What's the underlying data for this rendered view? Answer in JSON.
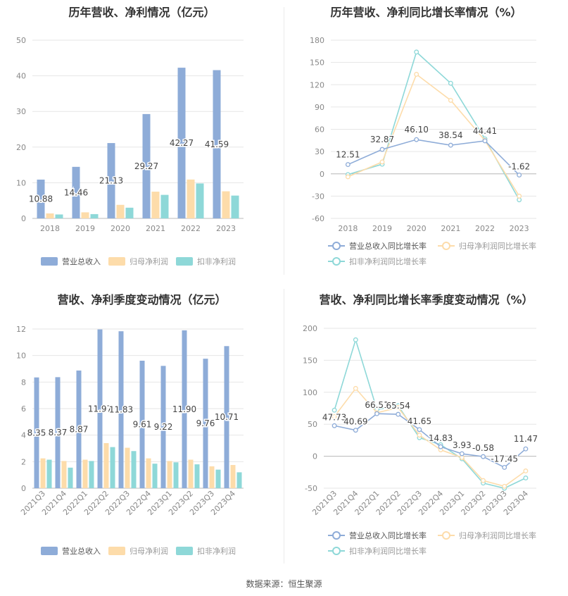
{
  "footer": {
    "source": "数据来源：恒生聚源"
  },
  "colors": {
    "revenue": "#8eacd8",
    "net_profit": "#fddcaa",
    "deducted": "#8ed8d8"
  },
  "chart_data": [
    {
      "id": "annual_values",
      "type": "bar",
      "title": "历年营收、净利情况（亿元）",
      "categories": [
        "2018",
        "2019",
        "2020",
        "2021",
        "2022",
        "2023"
      ],
      "ylim": [
        0,
        50
      ],
      "yticks": [
        0,
        10,
        20,
        30,
        40,
        50
      ],
      "series": [
        {
          "name": "营业总收入",
          "values": [
            10.88,
            14.46,
            21.13,
            29.27,
            42.27,
            41.59
          ],
          "labels": [
            "10.88",
            "14.46",
            "21.13",
            "29.27",
            "42.27",
            "41.59"
          ]
        },
        {
          "name": "归母净利润",
          "values": [
            1.4,
            1.7,
            3.8,
            7.5,
            10.9,
            7.6
          ]
        },
        {
          "name": "扣非净利润",
          "values": [
            1.1,
            1.2,
            3.0,
            6.6,
            9.8,
            6.4
          ]
        }
      ],
      "legend": "bottom"
    },
    {
      "id": "annual_growth",
      "type": "line",
      "title": "历年营收、净利同比增长率情况（%）",
      "categories": [
        "2018",
        "2019",
        "2020",
        "2021",
        "2022",
        "2023"
      ],
      "ylim": [
        -60,
        180
      ],
      "yticks": [
        -60,
        -30,
        0,
        30,
        60,
        90,
        120,
        150,
        180
      ],
      "series": [
        {
          "name": "营业总收入同比增长率",
          "values": [
            12.51,
            32.87,
            46.1,
            38.54,
            44.41,
            -1.62
          ],
          "labels": [
            "12.51",
            "32.87",
            "46.10",
            "38.54",
            "44.41",
            "-1.62"
          ]
        },
        {
          "name": "归母净利润同比增长率",
          "values": [
            -4,
            16,
            134,
            99,
            45,
            -30
          ]
        },
        {
          "name": "扣非净利润同比增长率",
          "values": [
            -1,
            13,
            164,
            122,
            47,
            -35
          ]
        }
      ],
      "legend": "bottom"
    },
    {
      "id": "quarterly_values",
      "type": "bar",
      "title": "营收、净利季度变动情况（亿元）",
      "categories": [
        "2021Q3",
        "2021Q4",
        "2022Q1",
        "2022Q2",
        "2022Q3",
        "2022Q4",
        "2023Q1",
        "2023Q2",
        "2023Q3",
        "2023Q4"
      ],
      "ylim": [
        0,
        12
      ],
      "yticks": [
        0,
        2,
        4,
        6,
        8,
        10,
        12
      ],
      "series": [
        {
          "name": "营业总收入",
          "values": [
            8.35,
            8.37,
            8.87,
            11.97,
            11.83,
            9.61,
            9.22,
            11.9,
            9.76,
            10.71
          ],
          "labels": [
            "8.35",
            "8.37",
            "8.87",
            "11.97",
            "11.83",
            "9.61",
            "9.22",
            "11.90",
            "9.76",
            "10.71"
          ]
        },
        {
          "name": "归母净利润",
          "values": [
            2.25,
            2.05,
            2.15,
            3.4,
            3.05,
            2.25,
            2.05,
            2.15,
            1.65,
            1.75
          ]
        },
        {
          "name": "扣非净利润",
          "values": [
            2.15,
            1.55,
            2.05,
            3.1,
            2.8,
            1.85,
            1.95,
            1.8,
            1.4,
            1.2
          ]
        }
      ],
      "legend": "bottom"
    },
    {
      "id": "quarterly_growth",
      "type": "line",
      "title": "营收、净利同比增长率季度变动情况（%）",
      "categories": [
        "2021Q3",
        "2021Q4",
        "2022Q1",
        "2022Q2",
        "2022Q3",
        "2022Q4",
        "2023Q1",
        "2023Q2",
        "2023Q3",
        "2023Q4"
      ],
      "ylim": [
        -50,
        200
      ],
      "yticks": [
        -50,
        0,
        50,
        100,
        150,
        200
      ],
      "series": [
        {
          "name": "营业总收入同比增长率",
          "values": [
            47.73,
            40.69,
            66.51,
            65.54,
            41.65,
            14.83,
            3.93,
            -0.58,
            -17.45,
            11.47
          ],
          "labels": [
            "47.73",
            "40.69",
            "66.51",
            "65.54",
            "41.65",
            "14.83",
            "3.93",
            "-0.58",
            "-17.45",
            "11.47"
          ]
        },
        {
          "name": "归母净利润同比增长率",
          "values": [
            62,
            106,
            68,
            76,
            33,
            10,
            -2,
            -38,
            -47,
            -23
          ]
        },
        {
          "name": "扣非净利润同比增长率",
          "values": [
            72,
            182,
            73,
            79,
            29,
            18,
            -4,
            -42,
            -50,
            -34
          ]
        }
      ],
      "legend": "bottom"
    }
  ]
}
